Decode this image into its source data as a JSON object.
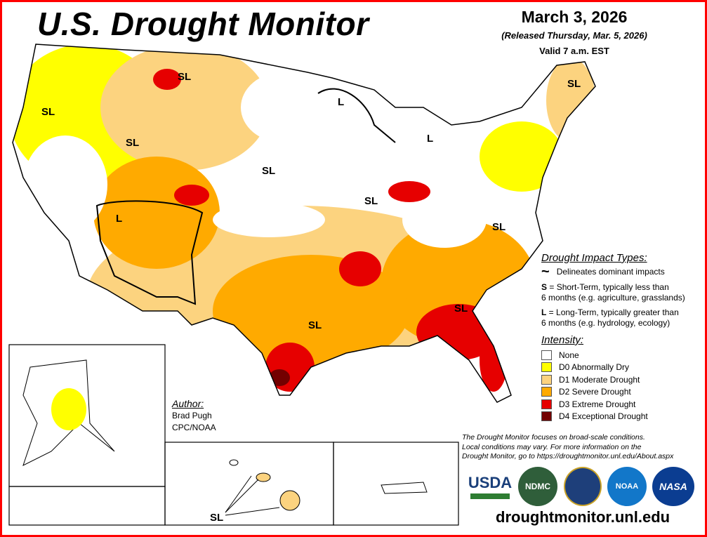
{
  "header": {
    "title": "U.S. Drought Monitor",
    "date": "March 3, 2026",
    "released": "(Released Thursday, Mar. 5, 2026)",
    "valid": "Valid 7 a.m. EST"
  },
  "map_labels": [
    "SL",
    "SL",
    "SL",
    "SL",
    "SL",
    "L",
    "L",
    "L",
    "SL",
    "SL",
    "SL",
    "SL",
    "SL"
  ],
  "impact_legend": {
    "title": "Drought Impact Types:",
    "delineates": "Delineates dominant impacts",
    "s_key": "S",
    "s_text": " = Short-Term, typically less than",
    "s_text2": "6 months (e.g. agriculture, grasslands)",
    "l_key": "L",
    "l_text": " = Long-Term, typically greater than",
    "l_text2": "6 months (e.g. hydrology, ecology)"
  },
  "intensity": {
    "title": "Intensity:",
    "items": [
      {
        "label": "None",
        "color": "#ffffff"
      },
      {
        "label": "D0 Abnormally Dry",
        "color": "#ffff00"
      },
      {
        "label": "D1 Moderate Drought",
        "color": "#fcd37f"
      },
      {
        "label": "D2 Severe Drought",
        "color": "#ffaa00"
      },
      {
        "label": "D3 Extreme Drought",
        "color": "#e60000"
      },
      {
        "label": "D4 Exceptional Drought",
        "color": "#730000"
      }
    ]
  },
  "note": [
    "The Drought Monitor focuses on broad-scale conditions.",
    "Local conditions may vary. For more information on the",
    "Drought Monitor, go to https://droughtmonitor.unl.edu/About.aspx"
  ],
  "author": {
    "heading": "Author:",
    "name": "Brad Pugh",
    "org": "CPC/NOAA"
  },
  "hawaii_label": "SL",
  "logos": {
    "usda": "USDA",
    "ndmc": "NDMC",
    "noaa": "NOAA",
    "nasa": "NASA"
  },
  "url": "droughtmonitor.unl.edu"
}
